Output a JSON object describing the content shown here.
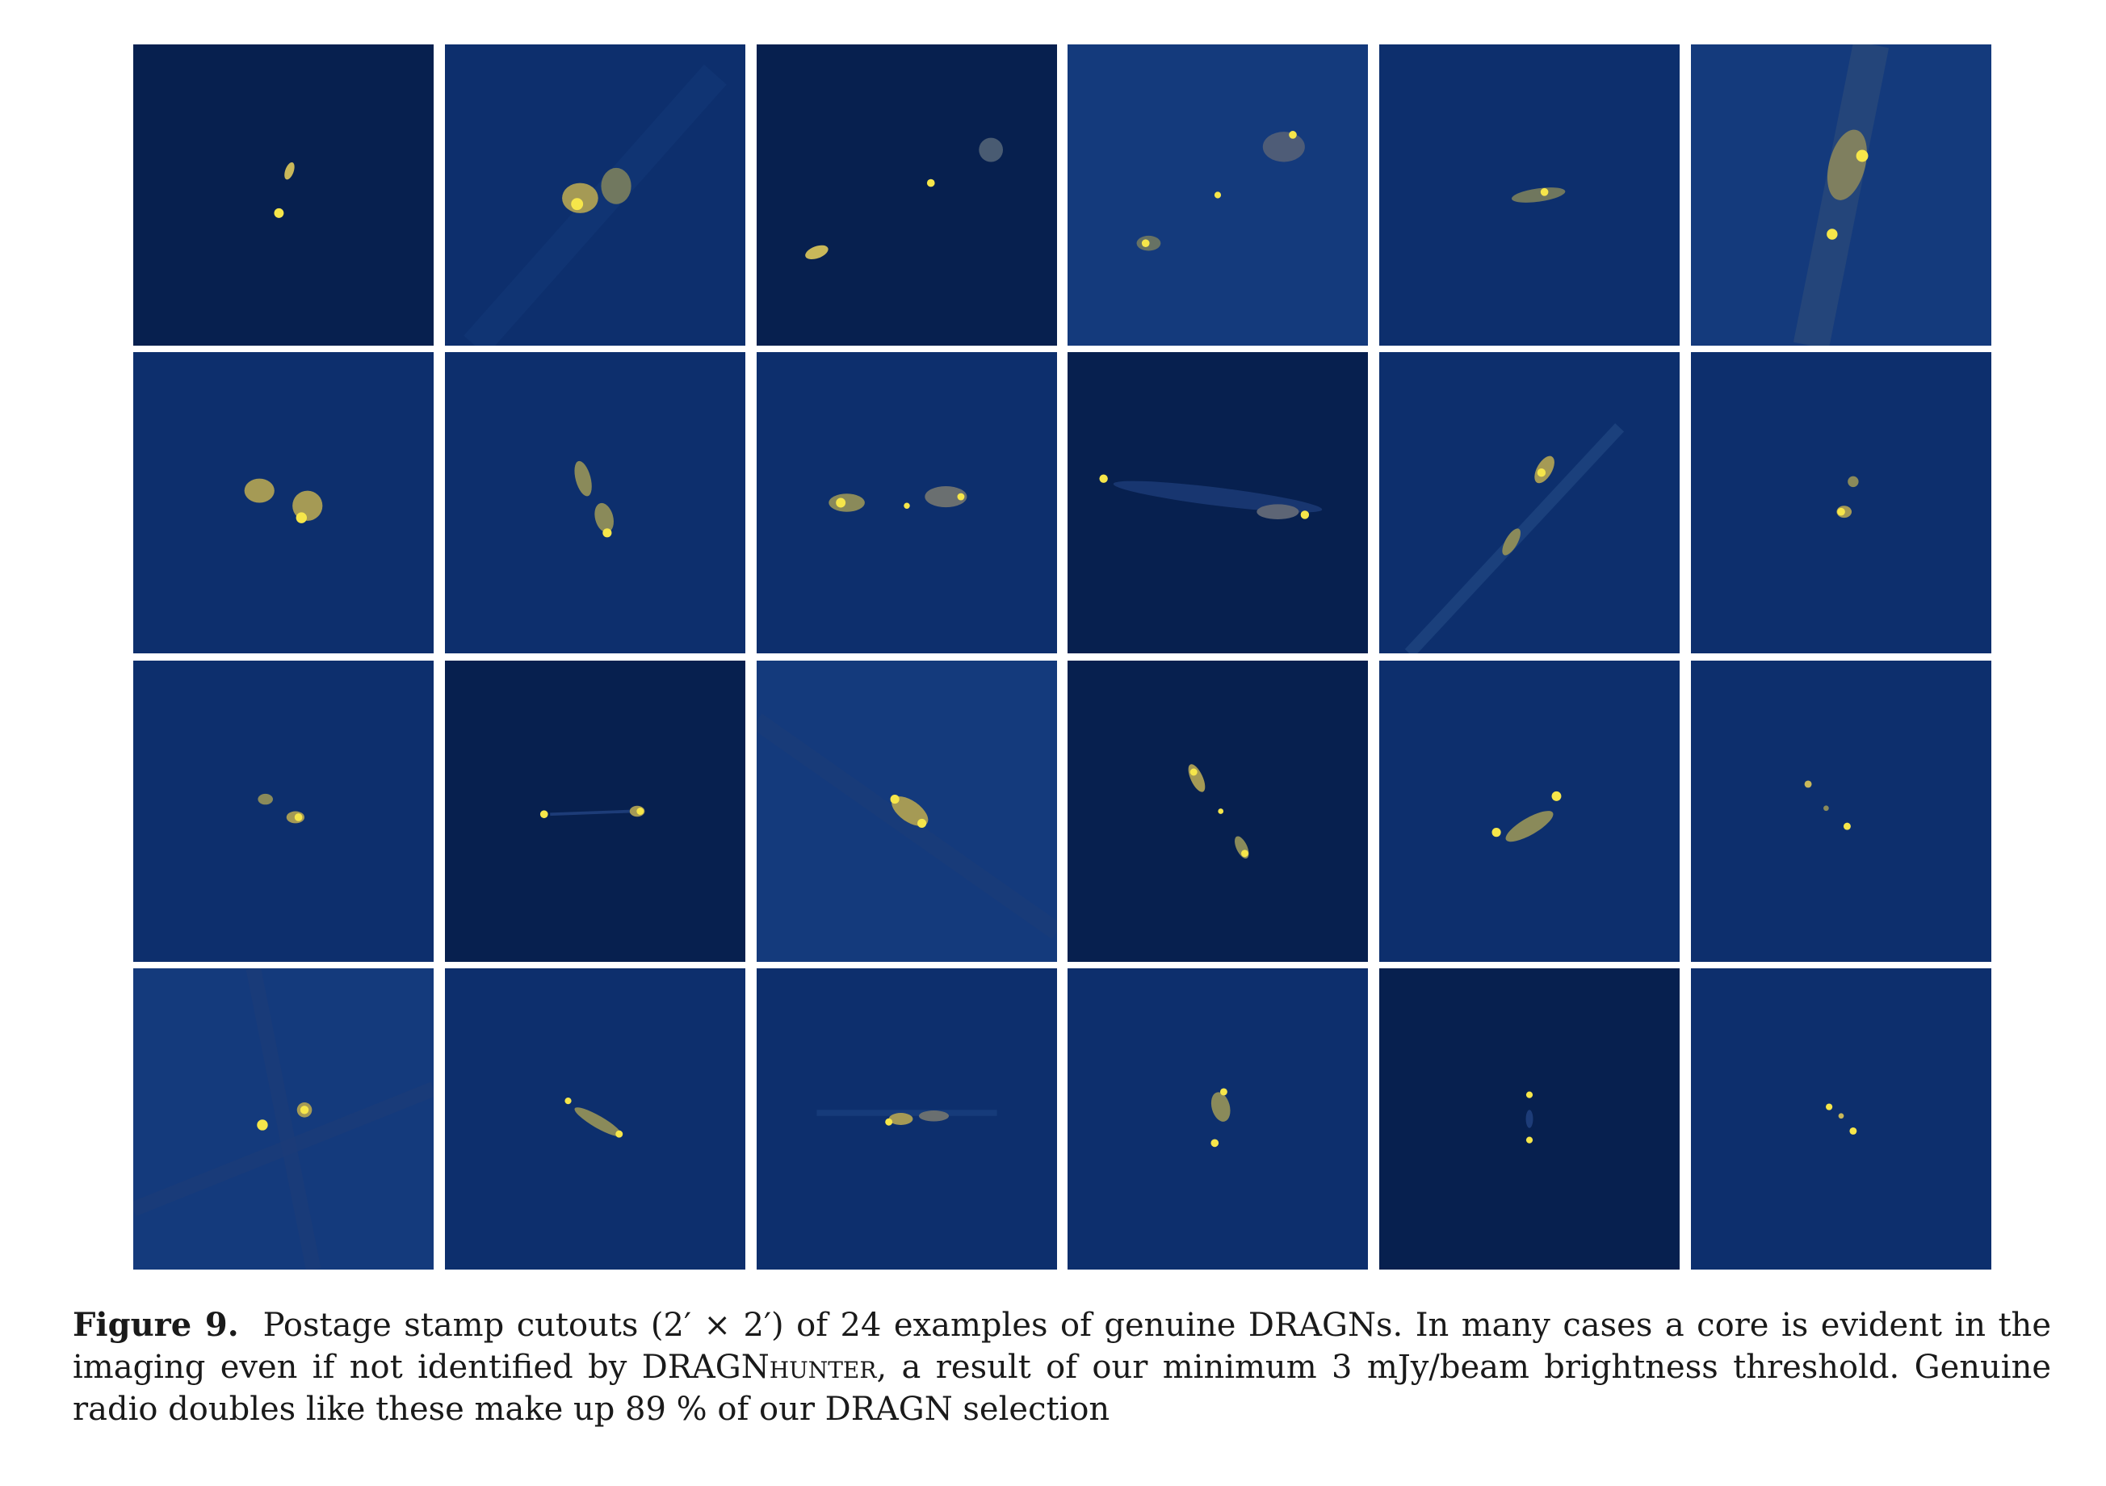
{
  "figure": {
    "colors": {
      "background_dark": "#07204f",
      "background_mid": "#0d2f6d",
      "background_light": "#143a7c",
      "emission_mid": "#8a8a5a",
      "emission_peak": "#f6e64a"
    },
    "stamps": [
      {
        "style": "dark"
      },
      {
        "style": "mid"
      },
      {
        "style": "dark"
      },
      {
        "style": "noisy"
      },
      {
        "style": "mid"
      },
      {
        "style": "noisy"
      },
      {
        "style": "mid"
      },
      {
        "style": "mid"
      },
      {
        "style": "mid"
      },
      {
        "style": "dark"
      },
      {
        "style": "mid"
      },
      {
        "style": "mid"
      },
      {
        "style": "mid"
      },
      {
        "style": "dark"
      },
      {
        "style": "noisy"
      },
      {
        "style": "dark"
      },
      {
        "style": "mid"
      },
      {
        "style": "mid"
      },
      {
        "style": "noisy"
      },
      {
        "style": "mid"
      },
      {
        "style": "mid"
      },
      {
        "style": "mid"
      },
      {
        "style": "dark"
      },
      {
        "style": "mid"
      }
    ]
  },
  "caption": {
    "label": "Figure 9.",
    "text_part1": "Postage stamp cutouts (2′ × 2′) of 24 examples of genuine DRAGNs. In many cases a core is evident in the imaging even if not identified by ",
    "dragn": "DRAGN",
    "hunter": "hunter",
    "text_part2": ", a result of our minimum 3 mJy/beam brightness threshold. Genuine radio doubles like these make up 89 % of our DRAGN selection"
  }
}
